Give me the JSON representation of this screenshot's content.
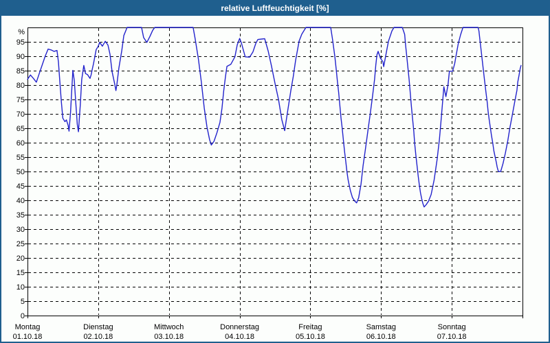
{
  "titlebar": {
    "title": "relative Luftfeuchtigkeit [%]"
  },
  "colors": {
    "titlebar_bg": "#1f5f8e",
    "titlebar_text": "#ffffff",
    "frame_border": "#1f5f8e",
    "page_bg": "#fcfefc",
    "grid": "#000000",
    "axis": "#000000",
    "tick_label": "#000000",
    "line": "#2222cc"
  },
  "chart_data": {
    "type": "line",
    "title": "relative Luftfeuchtigkeit [%]",
    "y_unit_label": "%",
    "ylim": [
      0,
      100
    ],
    "ytick_step": 5,
    "ytick_top_label": 95,
    "grid": true,
    "legend": "none",
    "x_axis": {
      "total_hours": 168,
      "days": [
        {
          "name": "Montag",
          "date": "01.10.18"
        },
        {
          "name": "Dienstag",
          "date": "02.10.18"
        },
        {
          "name": "Mittwoch",
          "date": "03.10.18"
        },
        {
          "name": "Donnerstag",
          "date": "04.10.18"
        },
        {
          "name": "Freitag",
          "date": "05.10.18"
        },
        {
          "name": "Samstag",
          "date": "06.10.18"
        },
        {
          "name": "Sonntag",
          "date": "07.10.18"
        }
      ]
    },
    "series": [
      {
        "name": "relative Luftfeuchtigkeit",
        "unit": "%",
        "points_hour_value": [
          [
            0,
            82
          ],
          [
            1,
            83.5
          ],
          [
            2,
            82.3
          ],
          [
            3,
            81
          ],
          [
            4,
            84
          ],
          [
            5,
            87
          ],
          [
            6,
            90
          ],
          [
            7,
            92.5
          ],
          [
            8,
            92.2
          ],
          [
            9,
            91.7
          ],
          [
            10,
            92
          ],
          [
            10.5,
            88
          ],
          [
            11,
            81
          ],
          [
            11.5,
            74
          ],
          [
            12,
            68.5
          ],
          [
            12.7,
            67.3
          ],
          [
            13.2,
            67.9
          ],
          [
            13.8,
            66
          ],
          [
            14.1,
            64
          ],
          [
            14.6,
            70.5
          ],
          [
            15,
            78
          ],
          [
            15.4,
            85.1
          ],
          [
            15.9,
            81.5
          ],
          [
            16.4,
            73.6
          ],
          [
            16.9,
            66.4
          ],
          [
            17.3,
            63.8
          ],
          [
            17.9,
            72.8
          ],
          [
            18.4,
            82
          ],
          [
            19.1,
            86.8
          ],
          [
            19.7,
            84
          ],
          [
            20.4,
            83.6
          ],
          [
            21.2,
            82.3
          ],
          [
            21.6,
            83.6
          ],
          [
            22,
            85.6
          ],
          [
            22.4,
            87.4
          ],
          [
            23.3,
            92.3
          ],
          [
            24,
            93.5
          ],
          [
            24.5,
            94.8
          ],
          [
            25.4,
            93.5
          ],
          [
            26.4,
            95.2
          ],
          [
            27.3,
            93.9
          ],
          [
            28,
            90.7
          ],
          [
            28.7,
            84.7
          ],
          [
            29.6,
            80.3
          ],
          [
            30,
            78.1
          ],
          [
            30.3,
            80
          ],
          [
            31,
            85.9
          ],
          [
            32,
            91.9
          ],
          [
            32.7,
            97.2
          ],
          [
            33.8,
            100
          ],
          [
            38.7,
            100
          ],
          [
            39.4,
            96.5
          ],
          [
            40.5,
            94.8
          ],
          [
            41.5,
            96.8
          ],
          [
            42.5,
            99
          ],
          [
            43.2,
            100
          ],
          [
            56.2,
            100
          ],
          [
            56.9,
            96
          ],
          [
            58,
            89
          ],
          [
            59,
            81
          ],
          [
            60,
            72
          ],
          [
            60.9,
            65.5
          ],
          [
            61.8,
            61
          ],
          [
            62.4,
            59.2
          ],
          [
            63.3,
            60.5
          ],
          [
            64.3,
            63.5
          ],
          [
            65.3,
            67
          ],
          [
            66,
            72
          ],
          [
            66.6,
            78
          ],
          [
            67.2,
            83
          ],
          [
            67.7,
            86.5
          ],
          [
            69,
            87.2
          ],
          [
            70.4,
            89.8
          ],
          [
            71.2,
            94
          ],
          [
            72,
            96.2
          ],
          [
            72.6,
            94.6
          ],
          [
            73.9,
            89.8
          ],
          [
            75.4,
            89.7
          ],
          [
            76.5,
            91.5
          ],
          [
            77.5,
            94.5
          ],
          [
            78.2,
            95.8
          ],
          [
            80.5,
            96.1
          ],
          [
            81.7,
            91.8
          ],
          [
            82.8,
            86.6
          ],
          [
            84,
            80.6
          ],
          [
            85.2,
            75
          ],
          [
            86.3,
            68
          ],
          [
            87.3,
            64.2
          ],
          [
            88.2,
            70.3
          ],
          [
            89.4,
            78.2
          ],
          [
            90.2,
            83
          ],
          [
            91,
            88.6
          ],
          [
            92.2,
            95.3
          ],
          [
            93.1,
            97.7
          ],
          [
            94.5,
            100
          ],
          [
            102.9,
            100
          ],
          [
            103.5,
            96
          ],
          [
            104.3,
            90
          ],
          [
            104.8,
            85.3
          ],
          [
            105.2,
            81
          ],
          [
            105.6,
            77.4
          ],
          [
            106,
            73
          ],
          [
            106.4,
            68.6
          ],
          [
            106.8,
            65.1
          ],
          [
            107.2,
            61.1
          ],
          [
            107.6,
            57.1
          ],
          [
            108,
            53.6
          ],
          [
            108.4,
            50
          ],
          [
            108.8,
            47.2
          ],
          [
            109.2,
            45.2
          ],
          [
            109.6,
            43.3
          ],
          [
            110.3,
            40.9
          ],
          [
            111.1,
            39.7
          ],
          [
            111.7,
            39.1
          ],
          [
            112.4,
            40.9
          ],
          [
            113.2,
            45.6
          ],
          [
            113.9,
            52
          ],
          [
            114.7,
            57.9
          ],
          [
            115.5,
            63.9
          ],
          [
            116.3,
            69.8
          ],
          [
            117.1,
            76.2
          ],
          [
            117.8,
            82.1
          ],
          [
            118.2,
            86.9
          ],
          [
            118.6,
            90.5
          ],
          [
            119,
            91.7
          ],
          [
            119.8,
            89.3
          ],
          [
            120.6,
            88.1
          ],
          [
            120.9,
            86.4
          ],
          [
            121.7,
            90.9
          ],
          [
            122.5,
            95.2
          ],
          [
            123.7,
            98.8
          ],
          [
            124.4,
            100
          ],
          [
            127.2,
            100
          ],
          [
            127.6,
            98.8
          ],
          [
            128,
            97.6
          ],
          [
            128.3,
            94
          ],
          [
            128.7,
            90.1
          ],
          [
            129.1,
            86.1
          ],
          [
            129.5,
            82.1
          ],
          [
            129.9,
            77.4
          ],
          [
            130.3,
            72.6
          ],
          [
            130.7,
            68.3
          ],
          [
            131.1,
            63.9
          ],
          [
            131.4,
            59.9
          ],
          [
            131.8,
            55.6
          ],
          [
            132.2,
            52
          ],
          [
            132.6,
            48.4
          ],
          [
            133,
            45.2
          ],
          [
            133.4,
            42.5
          ],
          [
            133.8,
            40.5
          ],
          [
            134.2,
            38.9
          ],
          [
            134.6,
            37.7
          ],
          [
            135.3,
            38.5
          ],
          [
            136.1,
            39.7
          ],
          [
            137,
            42
          ],
          [
            138,
            47
          ],
          [
            139,
            54
          ],
          [
            139.8,
            61
          ],
          [
            140.3,
            67
          ],
          [
            140.8,
            73
          ],
          [
            141.3,
            79.4
          ],
          [
            142,
            76
          ],
          [
            142.7,
            80
          ],
          [
            143.2,
            84.8
          ],
          [
            144.3,
            84.8
          ],
          [
            145,
            87.5
          ],
          [
            145.5,
            90.5
          ],
          [
            146.2,
            94.4
          ],
          [
            147,
            97.5
          ],
          [
            147.8,
            100
          ],
          [
            152.9,
            100
          ],
          [
            153.2,
            98.8
          ],
          [
            153.6,
            95.2
          ],
          [
            154,
            91.7
          ],
          [
            154.4,
            88.1
          ],
          [
            154.8,
            84.5
          ],
          [
            155.2,
            81
          ],
          [
            155.6,
            77.4
          ],
          [
            156,
            74.2
          ],
          [
            156.3,
            71
          ],
          [
            156.7,
            67.9
          ],
          [
            157.1,
            65.1
          ],
          [
            157.5,
            62.3
          ],
          [
            157.9,
            59.9
          ],
          [
            158.3,
            57.1
          ],
          [
            158.7,
            55.2
          ],
          [
            159.1,
            53.2
          ],
          [
            159.4,
            51.6
          ],
          [
            159.8,
            50
          ],
          [
            160.6,
            50
          ],
          [
            161.4,
            52.8
          ],
          [
            162.2,
            56.4
          ],
          [
            163,
            60.7
          ],
          [
            163.7,
            65.1
          ],
          [
            164.5,
            69.4
          ],
          [
            165.3,
            73.8
          ],
          [
            166.1,
            78.2
          ],
          [
            166.4,
            81
          ],
          [
            166.8,
            83.3
          ],
          [
            167.2,
            85.7
          ],
          [
            167.5,
            86.8
          ]
        ]
      }
    ]
  }
}
